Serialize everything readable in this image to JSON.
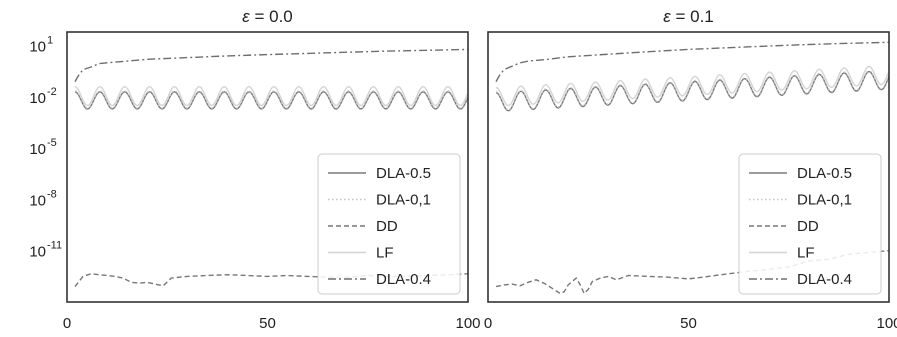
{
  "chart_data": [
    {
      "type": "line",
      "title": "ε = 0.0",
      "title_symbol": "ε",
      "title_value": " = 0.0",
      "xlim": [
        0,
        100
      ],
      "ylim_log10": [
        -14,
        1.8
      ],
      "yscale": "log",
      "xticks": [
        "0",
        "50",
        "100"
      ],
      "yticks": [
        {
          "base": "10",
          "exp": "1",
          "log10": 1
        },
        {
          "base": "10",
          "exp": "-2",
          "log10": -2
        },
        {
          "base": "10",
          "exp": "-5",
          "log10": -5
        },
        {
          "base": "10",
          "exp": "-8",
          "log10": -8
        },
        {
          "base": "10",
          "exp": "-11",
          "log10": -11
        }
      ],
      "grid": false,
      "legend_position": "lower-right",
      "series": [
        {
          "name": "DLA-0.5",
          "style": "solid",
          "color": "#7a7a7a",
          "x": [
            2,
            100
          ],
          "model": "periodic",
          "period": 6.2,
          "mean_log10": -2.2,
          "amp_log10": 0.5,
          "trend": 0
        },
        {
          "name": "DLA-0,1",
          "style": "dotted",
          "color": "#c4c4c4",
          "x": [
            2,
            100
          ],
          "model": "periodic",
          "period": 6.2,
          "mean_log10": -2.15,
          "amp_log10": 0.5,
          "trend": 0
        },
        {
          "name": "DD",
          "style": "dashed",
          "color": "#777777",
          "x": [
            2,
            4,
            6,
            8,
            10,
            12,
            14,
            16,
            18,
            20,
            22,
            24,
            26,
            28,
            30,
            35,
            40,
            45,
            50,
            55,
            60,
            65,
            70,
            75,
            80,
            85,
            90,
            95,
            100
          ],
          "y_log10": [
            -13.1,
            -12.5,
            -12.35,
            -12.4,
            -12.45,
            -12.5,
            -12.6,
            -12.85,
            -12.9,
            -12.85,
            -12.95,
            -13.05,
            -12.6,
            -12.55,
            -12.5,
            -12.45,
            -12.4,
            -12.45,
            -12.5,
            -12.45,
            -12.5,
            -12.55,
            -12.55,
            -12.45,
            -12.5,
            -12.5,
            -12.45,
            -12.4,
            -12.35
          ]
        },
        {
          "name": "LF",
          "style": "solid",
          "color": "#d4d4d4",
          "x": [
            2,
            100
          ],
          "model": "periodic",
          "period": 6.2,
          "mean_log10": -1.95,
          "amp_log10": 0.55,
          "trend": 0
        },
        {
          "name": "DLA-0.4",
          "style": "dashdot",
          "color": "#6e6e6e",
          "x": [
            2,
            3,
            4,
            6,
            8,
            10,
            15,
            20,
            30,
            40,
            50,
            60,
            70,
            80,
            90,
            100
          ],
          "y_log10": [
            -1.1,
            -0.7,
            -0.4,
            -0.25,
            -0.05,
            0.0,
            0.1,
            0.2,
            0.3,
            0.4,
            0.48,
            0.55,
            0.62,
            0.68,
            0.73,
            0.78
          ]
        }
      ]
    },
    {
      "type": "line",
      "title": "ε = 0.1",
      "title_symbol": "ε",
      "title_value": " = 0.1",
      "xlim": [
        0,
        100
      ],
      "ylim_log10": [
        -14,
        1.8
      ],
      "yscale": "log",
      "xticks": [
        "0",
        "50",
        "100"
      ],
      "grid": false,
      "legend_position": "lower-right",
      "series": [
        {
          "name": "DLA-0.5",
          "style": "solid",
          "color": "#7a7a7a",
          "x": [
            2,
            100
          ],
          "model": "periodic",
          "period": 6.2,
          "mean_log10": -2.3,
          "amp_log10": 0.55,
          "trend": 1.3
        },
        {
          "name": "DLA-0,1",
          "style": "dotted",
          "color": "#c4c4c4",
          "x": [
            2,
            100
          ],
          "model": "periodic",
          "period": 6.2,
          "mean_log10": -2.25,
          "amp_log10": 0.55,
          "trend": 1.3
        },
        {
          "name": "DD",
          "style": "dashed",
          "color": "#777777",
          "x": [
            2,
            4,
            6,
            8,
            10,
            12,
            14,
            16,
            18,
            19,
            20,
            22,
            23,
            24,
            25,
            26,
            28,
            30,
            32,
            35,
            40,
            45,
            50,
            55,
            60,
            65,
            70,
            75,
            80,
            85,
            90,
            95,
            100
          ],
          "y_log10": [
            -13.1,
            -13.0,
            -12.95,
            -13.05,
            -12.85,
            -12.7,
            -12.9,
            -13.2,
            -13.5,
            -13.4,
            -13.0,
            -12.6,
            -13.0,
            -13.5,
            -13.25,
            -12.8,
            -12.6,
            -12.5,
            -12.7,
            -12.45,
            -12.5,
            -12.55,
            -12.65,
            -12.5,
            -12.35,
            -12.2,
            -12.1,
            -11.95,
            -11.6,
            -11.5,
            -11.2,
            -11.1,
            -11.0
          ]
        },
        {
          "name": "LF",
          "style": "solid",
          "color": "#d4d4d4",
          "x": [
            2,
            100
          ],
          "model": "periodic",
          "period": 6.2,
          "mean_log10": -2.0,
          "amp_log10": 0.55,
          "trend": 1.3
        },
        {
          "name": "DLA-0.4",
          "style": "dashdot",
          "color": "#6e6e6e",
          "x": [
            2,
            3,
            4,
            6,
            8,
            10,
            15,
            20,
            30,
            40,
            50,
            60,
            70,
            80,
            90,
            100
          ],
          "y_log10": [
            -1.1,
            -0.7,
            -0.4,
            -0.2,
            0.0,
            0.1,
            0.2,
            0.35,
            0.5,
            0.65,
            0.78,
            0.88,
            0.98,
            1.07,
            1.14,
            1.2
          ]
        }
      ]
    }
  ]
}
